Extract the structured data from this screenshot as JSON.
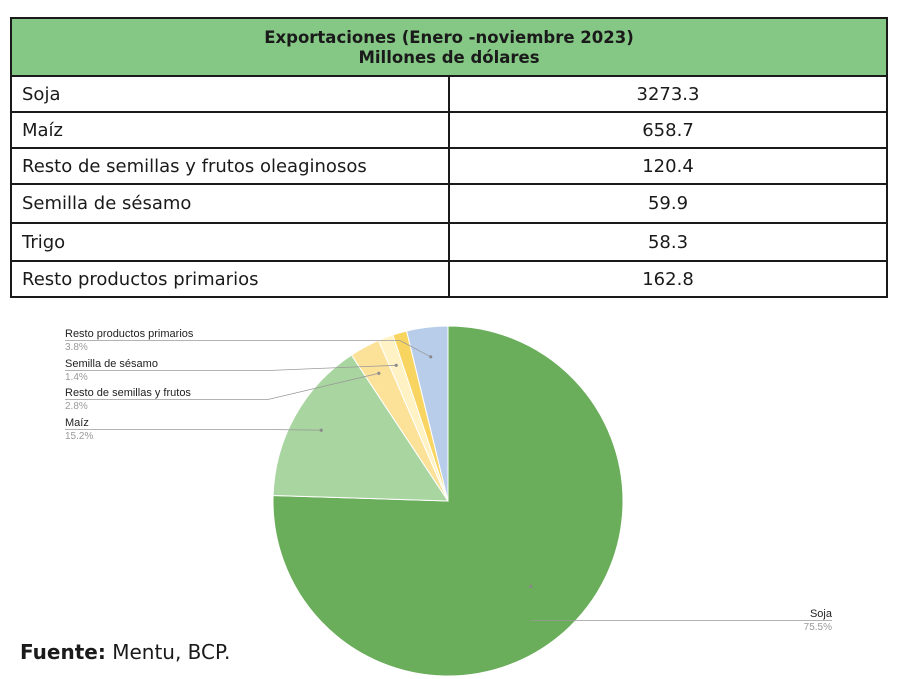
{
  "table": {
    "title_line1": "Exportaciones (Enero -noviembre 2023)",
    "title_line2": "Millones de dólares",
    "rows": [
      {
        "label": "Soja",
        "value": "3273.3"
      },
      {
        "label": "Maíz",
        "value": "658.7"
      },
      {
        "label": "Resto de semillas y frutos oleaginosos",
        "value": "120.4"
      },
      {
        "label": "Semilla de sésamo",
        "value": "59.9"
      },
      {
        "label": "Trigo",
        "value": "58.3"
      },
      {
        "label": "Resto productos primarios",
        "value": "162.8"
      }
    ]
  },
  "chart_data": {
    "type": "pie",
    "slices": [
      {
        "name": "Soja",
        "value": 75.5,
        "label": "Soja",
        "pct_label": "75.5%",
        "color": "#6aad5a"
      },
      {
        "name": "Maíz",
        "value": 15.2,
        "label": "Maíz",
        "pct_label": "15.2%",
        "color": "#a8d5a0"
      },
      {
        "name": "Resto de semillas y frutos",
        "value": 2.8,
        "label": "Resto de semillas y frutos",
        "pct_label": "2.8%",
        "color": "#fce199"
      },
      {
        "name": "Semilla de sésamo",
        "value": 1.4,
        "label": "Semilla de sésamo",
        "pct_label": "1.4%",
        "color": "#fff2c4"
      },
      {
        "name": "Trigo",
        "value": 1.3,
        "label": "",
        "pct_label": "",
        "color": "#f8d461"
      },
      {
        "name": "Resto productos primarios",
        "value": 3.8,
        "label": "Resto productos primarios",
        "pct_label": "3.8%",
        "color": "#b7cdea"
      }
    ]
  },
  "source": {
    "prefix": "Fuente:",
    "text": " Mentu, BCP."
  }
}
